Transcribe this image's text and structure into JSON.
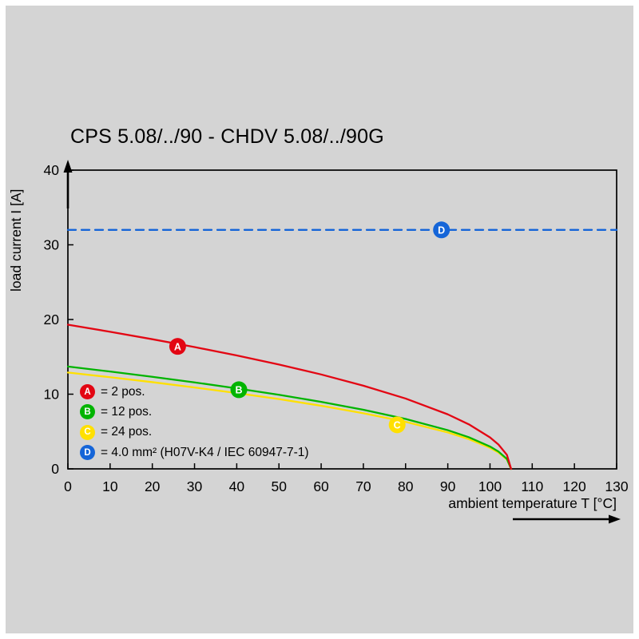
{
  "page": {
    "background": "#d4d4d4",
    "frame_color": "#ffffff",
    "axis_color": "#000000"
  },
  "title": "CPS 5.08/../90 - CHDV 5.08/../90G",
  "chart_data": {
    "type": "line",
    "title": "CPS 5.08/../90 - CHDV 5.08/../90G",
    "xlabel": "ambient temperature T [°C]",
    "ylabel": "load current I [A]",
    "xlim": [
      0,
      130
    ],
    "ylim": [
      0,
      40
    ],
    "xticks": [
      0,
      10,
      20,
      30,
      40,
      50,
      60,
      70,
      80,
      90,
      100,
      110,
      120,
      130
    ],
    "yticks": [
      0,
      10,
      20,
      30,
      40
    ],
    "grid": false,
    "legend_position": "lower-left",
    "series": [
      {
        "id": "A",
        "name": "2 pos.",
        "color": "#e30613",
        "style": "solid",
        "marker_at": {
          "x": 26,
          "y": 16.4
        },
        "points": [
          [
            0,
            19.3
          ],
          [
            10,
            18.36
          ],
          [
            20,
            17.36
          ],
          [
            30,
            16.31
          ],
          [
            40,
            15.19
          ],
          [
            50,
            13.97
          ],
          [
            60,
            12.64
          ],
          [
            70,
            11.14
          ],
          [
            80,
            9.42
          ],
          [
            90,
            7.3
          ],
          [
            95,
            5.96
          ],
          [
            100,
            4.21
          ],
          [
            102,
            3.26
          ],
          [
            104,
            1.88
          ],
          [
            105,
            0
          ]
        ]
      },
      {
        "id": "B",
        "name": "12 pos.",
        "color": "#00b400",
        "style": "solid",
        "marker_at": {
          "x": 40.5,
          "y": 10.6
        },
        "points": [
          [
            0,
            13.7
          ],
          [
            10,
            13.03
          ],
          [
            20,
            12.33
          ],
          [
            30,
            11.58
          ],
          [
            40,
            10.78
          ],
          [
            50,
            9.92
          ],
          [
            60,
            8.97
          ],
          [
            70,
            7.91
          ],
          [
            80,
            6.69
          ],
          [
            90,
            5.18
          ],
          [
            95,
            4.23
          ],
          [
            100,
            2.99
          ],
          [
            102,
            2.32
          ],
          [
            104,
            1.34
          ],
          [
            105,
            0
          ]
        ]
      },
      {
        "id": "C",
        "name": "24 pos.",
        "color": "#ffe000",
        "style": "solid",
        "marker_at": {
          "x": 78,
          "y": 5.9
        },
        "points": [
          [
            0,
            12.9
          ],
          [
            10,
            12.27
          ],
          [
            20,
            11.61
          ],
          [
            30,
            10.9
          ],
          [
            40,
            10.15
          ],
          [
            50,
            9.34
          ],
          [
            60,
            8.45
          ],
          [
            70,
            7.45
          ],
          [
            80,
            6.3
          ],
          [
            90,
            4.88
          ],
          [
            95,
            3.98
          ],
          [
            100,
            2.81
          ],
          [
            102,
            2.18
          ],
          [
            104,
            1.26
          ],
          [
            105,
            0
          ]
        ]
      },
      {
        "id": "D",
        "name": "4.0 mm² (H07V-K4 / IEC 60947-7-1)",
        "color": "#1565d8",
        "style": "dashed",
        "marker_at": {
          "x": 88.5,
          "y": 32
        },
        "points": [
          [
            0,
            32
          ],
          [
            130,
            32
          ]
        ]
      }
    ],
    "legend": [
      {
        "id": "A",
        "label": "= 2 pos."
      },
      {
        "id": "B",
        "label": "= 12 pos."
      },
      {
        "id": "C",
        "label": "= 24 pos."
      },
      {
        "id": "D",
        "label": "= 4.0 mm² (H07V-K4 / IEC 60947-7-1)"
      }
    ]
  }
}
